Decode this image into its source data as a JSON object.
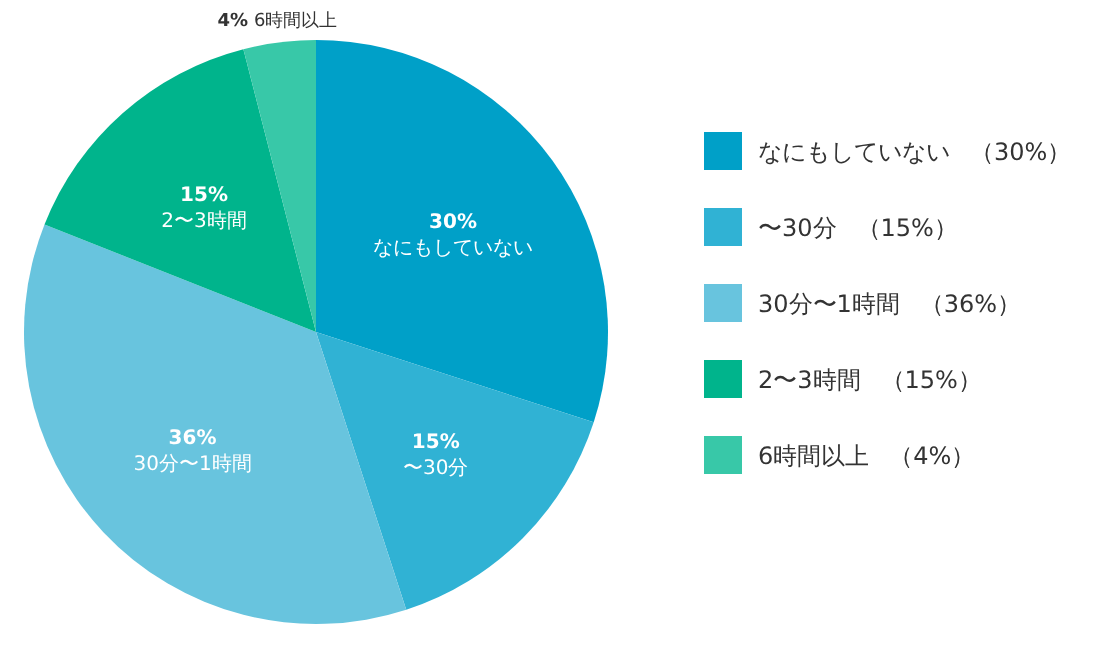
{
  "chart_data": {
    "type": "pie",
    "categories": [
      "なにもしていない",
      "〜30分",
      "30分〜1時間",
      "2〜3時間",
      "6時間以上"
    ],
    "values": [
      30,
      15,
      36,
      15,
      4
    ],
    "value_labels": [
      "30%",
      "15%",
      "36%",
      "15%",
      "4%"
    ],
    "colors": [
      "#00a0c8",
      "#30b2d4",
      "#68c4de",
      "#00b48c",
      "#38c8a8"
    ],
    "annotations": [
      "（30%）",
      "（15%）",
      "（36%）",
      "（15%）",
      "（4%）"
    ],
    "legend": "right"
  }
}
